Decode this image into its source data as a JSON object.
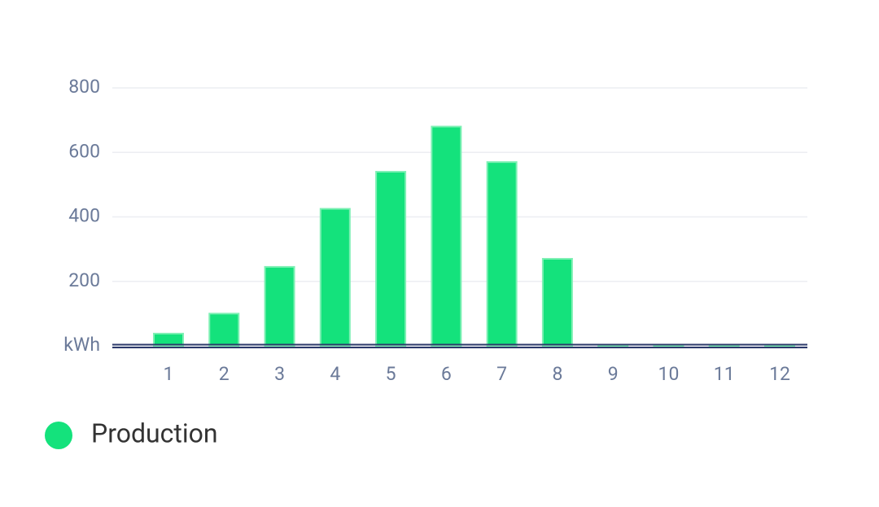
{
  "chart_data": {
    "type": "bar",
    "categories": [
      "1",
      "2",
      "3",
      "4",
      "5",
      "6",
      "7",
      "8",
      "9",
      "10",
      "11",
      "12"
    ],
    "series": [
      {
        "name": "Production",
        "color": "#14e27c",
        "values": [
          38,
          100,
          245,
          425,
          540,
          680,
          570,
          270,
          0,
          0,
          0,
          0
        ]
      }
    ],
    "ylim": [
      0,
      800
    ],
    "yticks": [
      {
        "value": 0,
        "label": "kWh"
      },
      200,
      400,
      600,
      800
    ],
    "grid": true,
    "legend": "bottom-left"
  }
}
